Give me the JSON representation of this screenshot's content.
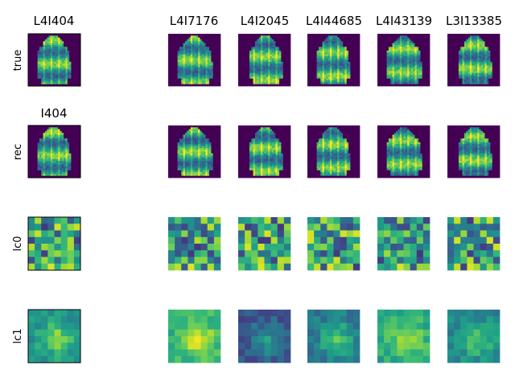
{
  "chart_data": {
    "type": "heatmap",
    "colormap": "viridis",
    "row_labels": [
      "true",
      "rec",
      "lc0",
      "lc1"
    ],
    "column_titles": [
      "L4I404",
      "L4I7176",
      "L4I2045",
      "L4I44685",
      "L4I43139",
      "L3I13385"
    ],
    "rec_title": "I404",
    "image_grid": [
      28,
      28
    ],
    "latent_grid": [
      8,
      8
    ]
  }
}
